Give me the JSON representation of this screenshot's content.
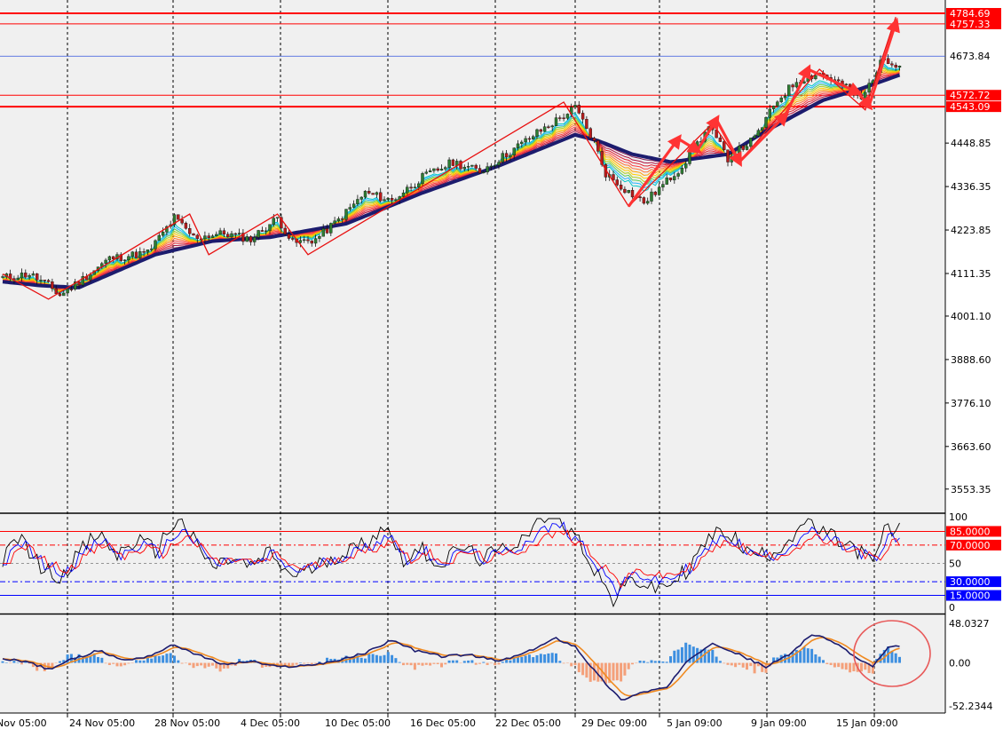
{
  "chart_data": [
    {
      "type": "candlestick",
      "panel": "price",
      "y_ticks": [
        "4448.85",
        "4336.35",
        "4223.85",
        "4111.35",
        "4001.10",
        "3888.60",
        "3776.10",
        "3663.60",
        "3553.35"
      ],
      "ylim": [
        3500,
        4810
      ],
      "levels": [
        {
          "label": "4784.69",
          "value": 4784.69,
          "color": "#ff0000",
          "style": "thick"
        },
        {
          "label": "4757.33",
          "value": 4757.33,
          "color": "#ff0000",
          "style": "thin"
        },
        {
          "label": "4673.84",
          "value": 4673.84,
          "color": "#3355dd",
          "style": "current"
        },
        {
          "label": "4572.72",
          "value": 4572.72,
          "color": "#ff0000",
          "style": "thin"
        },
        {
          "label": "4543.09",
          "value": 4543.09,
          "color": "#ff0000",
          "style": "thick"
        }
      ],
      "close_anchors": [
        [
          0,
          4100
        ],
        [
          7,
          4110
        ],
        [
          12,
          4080
        ],
        [
          15,
          4055
        ],
        [
          20,
          4090
        ],
        [
          28,
          4150
        ],
        [
          38,
          4165
        ],
        [
          45,
          4255
        ],
        [
          50,
          4205
        ],
        [
          58,
          4215
        ],
        [
          65,
          4200
        ],
        [
          72,
          4255
        ],
        [
          76,
          4190
        ],
        [
          82,
          4200
        ],
        [
          88,
          4250
        ],
        [
          95,
          4320
        ],
        [
          102,
          4300
        ],
        [
          110,
          4360
        ],
        [
          118,
          4400
        ],
        [
          125,
          4375
        ],
        [
          132,
          4420
        ],
        [
          140,
          4475
        ],
        [
          147,
          4520
        ],
        [
          150,
          4540
        ],
        [
          155,
          4450
        ],
        [
          158,
          4370
        ],
        [
          163,
          4330
        ],
        [
          168,
          4295
        ],
        [
          173,
          4340
        ],
        [
          178,
          4390
        ],
        [
          185,
          4490
        ],
        [
          190,
          4410
        ],
        [
          197,
          4460
        ],
        [
          203,
          4560
        ],
        [
          208,
          4610
        ],
        [
          214,
          4630
        ],
        [
          220,
          4600
        ],
        [
          225,
          4560
        ],
        [
          228,
          4620
        ],
        [
          231,
          4670
        ],
        [
          234,
          4655
        ]
      ],
      "ribbon_anchors": [
        [
          0,
          4090
        ],
        [
          10,
          4080
        ],
        [
          20,
          4075
        ],
        [
          40,
          4160
        ],
        [
          55,
          4195
        ],
        [
          70,
          4205
        ],
        [
          90,
          4240
        ],
        [
          110,
          4320
        ],
        [
          130,
          4390
        ],
        [
          150,
          4470
        ],
        [
          156,
          4455
        ],
        [
          165,
          4420
        ],
        [
          175,
          4400
        ],
        [
          190,
          4420
        ],
        [
          200,
          4480
        ],
        [
          215,
          4560
        ],
        [
          225,
          4590
        ],
        [
          235,
          4625
        ]
      ],
      "zigzag": [
        [
          4100,
          4110
        ],
        [
          12,
          4045
        ],
        [
          49,
          4265
        ],
        [
          54,
          4160
        ],
        [
          72,
          4265
        ],
        [
          80,
          4160
        ],
        [
          147,
          4555
        ],
        [
          164,
          4285
        ],
        [
          186,
          4500
        ],
        [
          193,
          4400
        ],
        [
          214,
          4640
        ],
        [
          226,
          4535
        ],
        [
          234,
          4775
        ]
      ],
      "x_ticks": [
        "Nov 05:00",
        "24 Nov 05:00",
        "28 Nov 05:00",
        "4 Dec 05:00",
        "10 Dec 05:00",
        "16 Dec 05:00",
        "22 Dec 05:00",
        "29 Dec 09:00",
        "5 Jan 09:00",
        "9 Jan 09:00",
        "15 Jan 09:00"
      ]
    },
    {
      "type": "line",
      "panel": "oscillator",
      "y_ticks": [
        "100",
        "50",
        "0"
      ],
      "ylim": [
        0,
        100
      ],
      "levels": [
        {
          "label": "85.0000",
          "value": 85,
          "color": "#ff0000"
        },
        {
          "label": "70.0000",
          "value": 70,
          "color": "#ff0000"
        },
        {
          "label": "30.0000",
          "value": 30,
          "color": "#0000ff"
        },
        {
          "label": "15.0000",
          "value": 15,
          "color": "#0000ff"
        }
      ],
      "line_anchors": [
        [
          0,
          55
        ],
        [
          5,
          72
        ],
        [
          10,
          48
        ],
        [
          15,
          40
        ],
        [
          20,
          60
        ],
        [
          25,
          75
        ],
        [
          30,
          58
        ],
        [
          35,
          70
        ],
        [
          40,
          62
        ],
        [
          46,
          88
        ],
        [
          50,
          70
        ],
        [
          55,
          48
        ],
        [
          60,
          55
        ],
        [
          65,
          48
        ],
        [
          70,
          60
        ],
        [
          75,
          42
        ],
        [
          80,
          45
        ],
        [
          85,
          55
        ],
        [
          90,
          60
        ],
        [
          95,
          68
        ],
        [
          100,
          82
        ],
        [
          105,
          55
        ],
        [
          110,
          62
        ],
        [
          115,
          50
        ],
        [
          120,
          65
        ],
        [
          125,
          55
        ],
        [
          130,
          60
        ],
        [
          135,
          70
        ],
        [
          140,
          85
        ],
        [
          145,
          92
        ],
        [
          150,
          75
        ],
        [
          155,
          48
        ],
        [
          160,
          20
        ],
        [
          165,
          40
        ],
        [
          170,
          30
        ],
        [
          175,
          35
        ],
        [
          180,
          48
        ],
        [
          185,
          72
        ],
        [
          190,
          78
        ],
        [
          195,
          60
        ],
        [
          200,
          58
        ],
        [
          205,
          68
        ],
        [
          210,
          85
        ],
        [
          215,
          76
        ],
        [
          220,
          68
        ],
        [
          225,
          60
        ],
        [
          228,
          50
        ],
        [
          231,
          78
        ],
        [
          234,
          78
        ]
      ],
      "series": [
        {
          "color": "#000000",
          "amp": 1.35,
          "lag": 0
        },
        {
          "color": "#0000ff",
          "amp": 1.0,
          "lag": 1
        },
        {
          "color": "#ff0000",
          "amp": 0.78,
          "lag": 2
        }
      ]
    },
    {
      "type": "bar",
      "panel": "macd",
      "y_ticks": [
        "48.0327",
        "0.00",
        "-52.2344"
      ],
      "ylim": [
        -52.2344,
        48.0327
      ],
      "line_anchors": [
        [
          0,
          5
        ],
        [
          6,
          2
        ],
        [
          12,
          -8
        ],
        [
          18,
          4
        ],
        [
          25,
          15
        ],
        [
          32,
          3
        ],
        [
          38,
          8
        ],
        [
          45,
          22
        ],
        [
          52,
          8
        ],
        [
          58,
          -2
        ],
        [
          65,
          2
        ],
        [
          72,
          -5
        ],
        [
          80,
          -3
        ],
        [
          88,
          3
        ],
        [
          95,
          12
        ],
        [
          102,
          28
        ],
        [
          108,
          15
        ],
        [
          115,
          8
        ],
        [
          122,
          10
        ],
        [
          130,
          2
        ],
        [
          137,
          12
        ],
        [
          145,
          30
        ],
        [
          150,
          20
        ],
        [
          156,
          -15
        ],
        [
          162,
          -45
        ],
        [
          168,
          -35
        ],
        [
          174,
          -30
        ],
        [
          180,
          5
        ],
        [
          186,
          25
        ],
        [
          192,
          12
        ],
        [
          200,
          -5
        ],
        [
          206,
          10
        ],
        [
          212,
          35
        ],
        [
          218,
          25
        ],
        [
          225,
          2
        ],
        [
          228,
          -4
        ],
        [
          232,
          18
        ],
        [
          235,
          20
        ]
      ]
    }
  ]
}
